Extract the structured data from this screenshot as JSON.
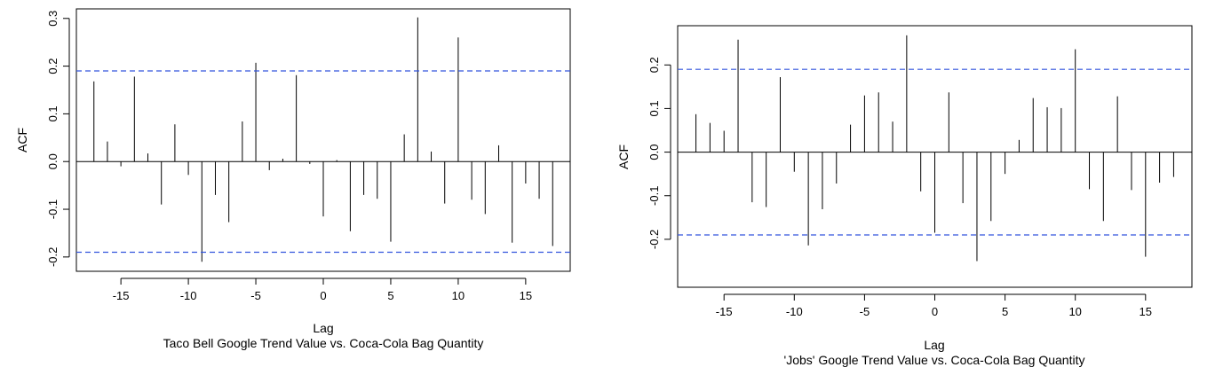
{
  "chart_data": [
    {
      "type": "bar",
      "subtitle": "Taco Bell Google Trend Value vs. Coca-Cola Bag Quantity",
      "xlabel": "Lag",
      "ylabel": "ACF",
      "xlim": [
        -18.3,
        18.3
      ],
      "ylim": [
        -0.23,
        0.32
      ],
      "x_ticks": [
        -15,
        -10,
        -5,
        0,
        5,
        10,
        15
      ],
      "y_ticks": [
        -0.2,
        -0.1,
        0.0,
        0.1,
        0.2,
        0.3
      ],
      "y_tick_labels": [
        "-0.2",
        "-0.1",
        "0.0",
        "0.1",
        "0.2",
        "0.3"
      ],
      "ci": 0.19,
      "ci_color": "#3355dd",
      "grid": false,
      "lags": [
        -17,
        -16,
        -15,
        -14,
        -13,
        -12,
        -11,
        -10,
        -9,
        -8,
        -7,
        -6,
        -5,
        -4,
        -3,
        -2,
        -1,
        0,
        1,
        2,
        3,
        4,
        5,
        6,
        7,
        8,
        9,
        10,
        11,
        12,
        13,
        14,
        15,
        16,
        17
      ],
      "values": [
        0.168,
        0.042,
        -0.01,
        0.178,
        0.017,
        -0.09,
        0.078,
        -0.028,
        -0.21,
        -0.07,
        -0.127,
        0.084,
        0.207,
        -0.018,
        0.006,
        0.181,
        -0.005,
        -0.115,
        0.003,
        -0.146,
        -0.07,
        -0.078,
        -0.168,
        0.057,
        0.302,
        0.021,
        -0.088,
        0.26,
        -0.08,
        -0.11,
        0.034,
        -0.17,
        -0.046,
        -0.078,
        -0.177
      ]
    },
    {
      "type": "bar",
      "subtitle": "'Jobs' Google Trend Value vs. Coca-Cola Bag Quantity",
      "xlabel": "Lag",
      "ylabel": "ACF",
      "xlim": [
        -18.3,
        18.3
      ],
      "ylim": [
        -0.31,
        0.29
      ],
      "x_ticks": [
        -15,
        -10,
        -5,
        0,
        5,
        10,
        15
      ],
      "y_ticks": [
        -0.2,
        -0.1,
        0.0,
        0.1,
        0.2
      ],
      "y_tick_labels": [
        "-0.2",
        "-0.1",
        "0.0",
        "0.1",
        "0.2"
      ],
      "ci": 0.19,
      "ci_color": "#3355dd",
      "grid": false,
      "lags": [
        -17,
        -16,
        -15,
        -14,
        -13,
        -12,
        -11,
        -10,
        -9,
        -8,
        -7,
        -6,
        -5,
        -4,
        -3,
        -2,
        -1,
        0,
        1,
        2,
        3,
        4,
        5,
        6,
        7,
        8,
        9,
        10,
        11,
        12,
        13,
        14,
        15,
        16,
        17
      ],
      "values": [
        0.087,
        0.067,
        0.049,
        0.258,
        -0.115,
        -0.126,
        0.172,
        -0.045,
        -0.214,
        -0.131,
        -0.072,
        0.063,
        0.13,
        0.137,
        0.07,
        0.268,
        -0.09,
        -0.185,
        0.137,
        -0.117,
        -0.25,
        -0.158,
        -0.05,
        0.028,
        0.124,
        0.103,
        0.101,
        0.236,
        -0.085,
        -0.158,
        0.128,
        -0.087,
        -0.24,
        -0.07,
        -0.057
      ]
    }
  ]
}
